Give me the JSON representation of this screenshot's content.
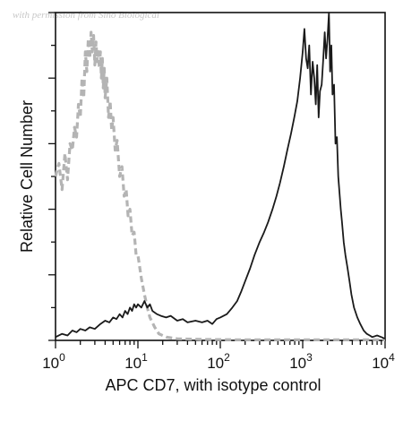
{
  "watermark": "with permission from Sino Biological",
  "chart_data": {
    "type": "line",
    "title": "",
    "xlabel": "APC CD7, with isotype control",
    "ylabel": "Relative Cell Number",
    "x_scale": "log",
    "xlim": [
      1,
      10000
    ],
    "ylim": [
      0,
      100
    ],
    "x_ticks": [
      {
        "base": "10",
        "exp": "0",
        "value": 1
      },
      {
        "base": "10",
        "exp": "1",
        "value": 10
      },
      {
        "base": "10",
        "exp": "2",
        "value": 100
      },
      {
        "base": "10",
        "exp": "3",
        "value": 1000
      },
      {
        "base": "10",
        "exp": "4",
        "value": 10000
      }
    ],
    "grid": false,
    "legend": "none",
    "series": [
      {
        "style": "dashed",
        "color": "#b4b4b4",
        "points": [
          [
            1.0,
            50
          ],
          [
            1.1,
            54
          ],
          [
            1.2,
            46
          ],
          [
            1.3,
            57
          ],
          [
            1.4,
            49
          ],
          [
            1.5,
            60
          ],
          [
            1.6,
            58
          ],
          [
            1.7,
            65
          ],
          [
            1.8,
            62
          ],
          [
            1.9,
            72
          ],
          [
            2.0,
            68
          ],
          [
            2.1,
            80
          ],
          [
            2.2,
            74
          ],
          [
            2.3,
            88
          ],
          [
            2.4,
            82
          ],
          [
            2.5,
            92
          ],
          [
            2.6,
            86
          ],
          [
            2.7,
            94
          ],
          [
            2.8,
            88
          ],
          [
            2.9,
            93
          ],
          [
            3.0,
            84
          ],
          [
            3.1,
            91
          ],
          [
            3.2,
            85
          ],
          [
            3.3,
            89
          ],
          [
            3.4,
            83
          ],
          [
            3.5,
            88
          ],
          [
            3.6,
            80
          ],
          [
            3.7,
            86
          ],
          [
            3.8,
            77
          ],
          [
            3.9,
            83
          ],
          [
            4.0,
            74
          ],
          [
            4.2,
            80
          ],
          [
            4.4,
            68
          ],
          [
            4.6,
            73
          ],
          [
            4.8,
            64
          ],
          [
            5.0,
            68
          ],
          [
            5.3,
            58
          ],
          [
            5.6,
            61
          ],
          [
            6.0,
            50
          ],
          [
            6.4,
            53
          ],
          [
            6.8,
            44
          ],
          [
            7.2,
            46
          ],
          [
            7.6,
            38
          ],
          [
            8.0,
            40
          ],
          [
            8.5,
            32
          ],
          [
            9.0,
            33
          ],
          [
            9.5,
            26
          ],
          [
            10.0,
            26
          ],
          [
            11.0,
            19
          ],
          [
            12.0,
            14
          ],
          [
            13.0,
            10
          ],
          [
            14.0,
            7
          ],
          [
            16.0,
            4
          ],
          [
            18.0,
            2
          ],
          [
            22.0,
            1
          ],
          [
            30.0,
            0.5
          ],
          [
            60.0,
            0.3
          ],
          [
            150.0,
            0.2
          ],
          [
            500.0,
            0.2
          ],
          [
            2000.0,
            0.2
          ],
          [
            10000.0,
            0.2
          ]
        ]
      },
      {
        "style": "solid",
        "color": "#1a1a1a",
        "points": [
          [
            1.0,
            1
          ],
          [
            1.2,
            2
          ],
          [
            1.4,
            1.5
          ],
          [
            1.6,
            3
          ],
          [
            1.8,
            2.5
          ],
          [
            2.0,
            3.5
          ],
          [
            2.3,
            3
          ],
          [
            2.6,
            4
          ],
          [
            3.0,
            3.5
          ],
          [
            3.5,
            5
          ],
          [
            4.0,
            6
          ],
          [
            4.5,
            5.5
          ],
          [
            5.0,
            7
          ],
          [
            5.5,
            6.5
          ],
          [
            6.0,
            8
          ],
          [
            6.5,
            7
          ],
          [
            7.0,
            9
          ],
          [
            7.5,
            8
          ],
          [
            8.0,
            10
          ],
          [
            8.5,
            9
          ],
          [
            9.0,
            11
          ],
          [
            9.5,
            10
          ],
          [
            10.0,
            11
          ],
          [
            11.0,
            10
          ],
          [
            12.0,
            12
          ],
          [
            13.0,
            10
          ],
          [
            14.0,
            11
          ],
          [
            15.0,
            9
          ],
          [
            17.0,
            8
          ],
          [
            19.0,
            7.5
          ],
          [
            22.0,
            7
          ],
          [
            25.0,
            7.5
          ],
          [
            30.0,
            6
          ],
          [
            35.0,
            6.5
          ],
          [
            40.0,
            5.5
          ],
          [
            50.0,
            6
          ],
          [
            60.0,
            5.5
          ],
          [
            70.0,
            6
          ],
          [
            80.0,
            5
          ],
          [
            90.0,
            6.5
          ],
          [
            100.0,
            7
          ],
          [
            120.0,
            8
          ],
          [
            140.0,
            10
          ],
          [
            160.0,
            12
          ],
          [
            180.0,
            15
          ],
          [
            200.0,
            18
          ],
          [
            230.0,
            22
          ],
          [
            260.0,
            26
          ],
          [
            300.0,
            30
          ],
          [
            340.0,
            33
          ],
          [
            380.0,
            36
          ],
          [
            430.0,
            40
          ],
          [
            480.0,
            44
          ],
          [
            530.0,
            48
          ],
          [
            590.0,
            53
          ],
          [
            650.0,
            58
          ],
          [
            720.0,
            63
          ],
          [
            790.0,
            68
          ],
          [
            860.0,
            73
          ],
          [
            930.0,
            80
          ],
          [
            1000.0,
            88
          ],
          [
            1050.0,
            95
          ],
          [
            1100.0,
            86
          ],
          [
            1150.0,
            83
          ],
          [
            1200.0,
            90
          ],
          [
            1260.0,
            75
          ],
          [
            1320.0,
            85
          ],
          [
            1380.0,
            80
          ],
          [
            1440.0,
            72
          ],
          [
            1500.0,
            84
          ],
          [
            1560.0,
            68
          ],
          [
            1620.0,
            76
          ],
          [
            1700.0,
            78
          ],
          [
            1780.0,
            86
          ],
          [
            1850.0,
            94
          ],
          [
            1920.0,
            86
          ],
          [
            2000.0,
            92
          ],
          [
            2080.0,
            100
          ],
          [
            2150.0,
            82
          ],
          [
            2230.0,
            90
          ],
          [
            2300.0,
            75
          ],
          [
            2400.0,
            78
          ],
          [
            2500.0,
            60
          ],
          [
            2600.0,
            62
          ],
          [
            2700.0,
            50
          ],
          [
            2800.0,
            45
          ],
          [
            2900.0,
            40
          ],
          [
            3000.0,
            36
          ],
          [
            3150.0,
            30
          ],
          [
            3300.0,
            26
          ],
          [
            3500.0,
            22
          ],
          [
            3700.0,
            18
          ],
          [
            3900.0,
            14
          ],
          [
            4200.0,
            10
          ],
          [
            4600.0,
            7
          ],
          [
            5000.0,
            5
          ],
          [
            5500.0,
            3
          ],
          [
            6000.0,
            2
          ],
          [
            6500.0,
            1.5
          ],
          [
            7000.0,
            1
          ],
          [
            8000.0,
            1.5
          ],
          [
            9000.0,
            1
          ],
          [
            10000.0,
            0.5
          ]
        ]
      }
    ]
  }
}
